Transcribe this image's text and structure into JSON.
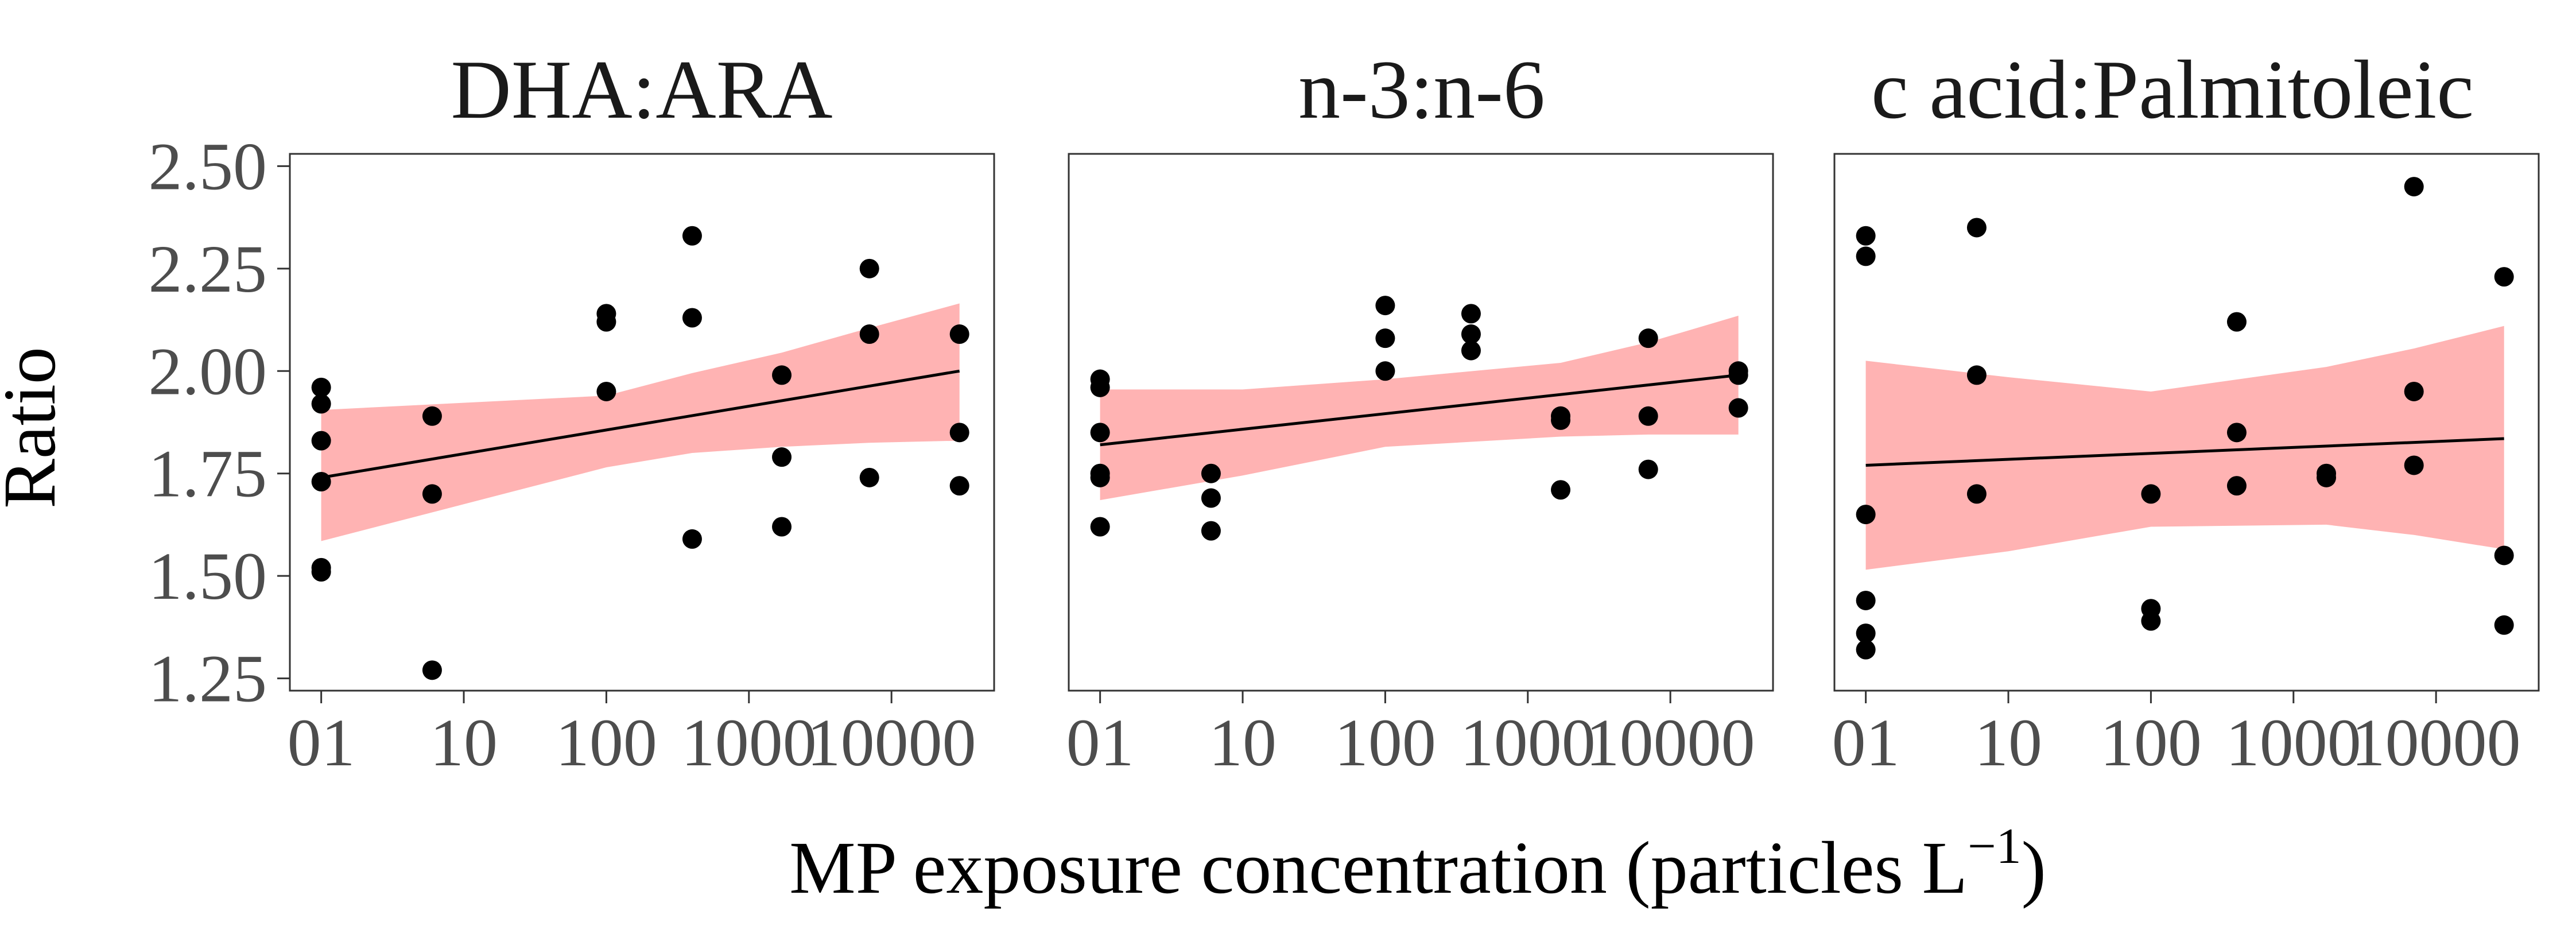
{
  "chart_data": {
    "type": "scatter",
    "xlabel": "MP exposure concentration (particles L",
    "xlabel_sup": "−1",
    "xlabel_close": ")",
    "ylabel": "Ratio",
    "x_scale": "log10",
    "x_ticks": [
      {
        "value": 1,
        "label": "01"
      },
      {
        "value": 10,
        "label": "10"
      },
      {
        "value": 100,
        "label": "100"
      },
      {
        "value": 1000,
        "label": "1000"
      },
      {
        "value": 10000,
        "label": "10000"
      }
    ],
    "y_ticks": [
      {
        "value": 1.25,
        "label": "1.25"
      },
      {
        "value": 1.5,
        "label": "1.50"
      },
      {
        "value": 1.75,
        "label": "1.75"
      },
      {
        "value": 2.0,
        "label": "2.00"
      },
      {
        "value": 2.25,
        "label": "2.25"
      },
      {
        "value": 2.5,
        "label": "2.50"
      }
    ],
    "ylim": [
      1.22,
      2.53
    ],
    "xlim_log10": [
      -0.22,
      4.72
    ],
    "grid": false,
    "colors": {
      "points": "#000000",
      "fit_line": "#000000",
      "ci_band": "#ffb3b3",
      "panel_border": "#333333"
    },
    "panels": [
      {
        "title": "DHA:ARA",
        "points": [
          {
            "x": 1,
            "y": 1.96
          },
          {
            "x": 1,
            "y": 1.92
          },
          {
            "x": 1,
            "y": 1.83
          },
          {
            "x": 1,
            "y": 1.73
          },
          {
            "x": 1,
            "y": 1.52
          },
          {
            "x": 1,
            "y": 1.51
          },
          {
            "x": 6,
            "y": 1.89
          },
          {
            "x": 6,
            "y": 1.7
          },
          {
            "x": 6,
            "y": 1.27
          },
          {
            "x": 100,
            "y": 2.14
          },
          {
            "x": 100,
            "y": 2.12
          },
          {
            "x": 100,
            "y": 1.95
          },
          {
            "x": 400,
            "y": 2.33
          },
          {
            "x": 400,
            "y": 2.13
          },
          {
            "x": 400,
            "y": 1.59
          },
          {
            "x": 1700,
            "y": 1.99
          },
          {
            "x": 1700,
            "y": 1.79
          },
          {
            "x": 1700,
            "y": 1.62
          },
          {
            "x": 7000,
            "y": 2.25
          },
          {
            "x": 7000,
            "y": 2.09
          },
          {
            "x": 7000,
            "y": 1.74
          },
          {
            "x": 30000,
            "y": 2.09
          },
          {
            "x": 30000,
            "y": 1.85
          },
          {
            "x": 30000,
            "y": 1.72
          }
        ],
        "fit": [
          {
            "x": 1,
            "y": 1.74
          },
          {
            "x": 30000,
            "y": 2.0
          }
        ],
        "ci_upper": [
          {
            "x": 1,
            "y": 1.905
          },
          {
            "x": 100,
            "y": 1.94
          },
          {
            "x": 400,
            "y": 1.995
          },
          {
            "x": 1700,
            "y": 2.045
          },
          {
            "x": 7000,
            "y": 2.105
          },
          {
            "x": 30000,
            "y": 2.165
          }
        ],
        "ci_lower": [
          {
            "x": 1,
            "y": 1.585
          },
          {
            "x": 100,
            "y": 1.765
          },
          {
            "x": 400,
            "y": 1.8
          },
          {
            "x": 1700,
            "y": 1.815
          },
          {
            "x": 7000,
            "y": 1.825
          },
          {
            "x": 30000,
            "y": 1.83
          }
        ]
      },
      {
        "title": "n-3:n-6",
        "points": [
          {
            "x": 1,
            "y": 1.98
          },
          {
            "x": 1,
            "y": 1.96
          },
          {
            "x": 1,
            "y": 1.85
          },
          {
            "x": 1,
            "y": 1.75
          },
          {
            "x": 1,
            "y": 1.74
          },
          {
            "x": 1,
            "y": 1.62
          },
          {
            "x": 6,
            "y": 1.75
          },
          {
            "x": 6,
            "y": 1.69
          },
          {
            "x": 6,
            "y": 1.61
          },
          {
            "x": 100,
            "y": 2.16
          },
          {
            "x": 100,
            "y": 2.08
          },
          {
            "x": 100,
            "y": 2.0
          },
          {
            "x": 400,
            "y": 2.14
          },
          {
            "x": 400,
            "y": 2.09
          },
          {
            "x": 400,
            "y": 2.05
          },
          {
            "x": 1700,
            "y": 1.89
          },
          {
            "x": 1700,
            "y": 1.88
          },
          {
            "x": 1700,
            "y": 1.71
          },
          {
            "x": 7000,
            "y": 2.08
          },
          {
            "x": 7000,
            "y": 1.89
          },
          {
            "x": 7000,
            "y": 1.76
          },
          {
            "x": 30000,
            "y": 2.0
          },
          {
            "x": 30000,
            "y": 1.99
          },
          {
            "x": 30000,
            "y": 1.91
          }
        ],
        "fit": [
          {
            "x": 1,
            "y": 1.82
          },
          {
            "x": 30000,
            "y": 1.99
          }
        ],
        "ci_upper": [
          {
            "x": 1,
            "y": 1.955
          },
          {
            "x": 10,
            "y": 1.955
          },
          {
            "x": 100,
            "y": 1.98
          },
          {
            "x": 1700,
            "y": 2.02
          },
          {
            "x": 7000,
            "y": 2.07
          },
          {
            "x": 30000,
            "y": 2.135
          }
        ],
        "ci_lower": [
          {
            "x": 1,
            "y": 1.685
          },
          {
            "x": 10,
            "y": 1.745
          },
          {
            "x": 100,
            "y": 1.815
          },
          {
            "x": 1700,
            "y": 1.84
          },
          {
            "x": 7000,
            "y": 1.845
          },
          {
            "x": 30000,
            "y": 1.845
          }
        ]
      },
      {
        "title": "c acid:Palmitoleic",
        "points": [
          {
            "x": 1,
            "y": 2.33
          },
          {
            "x": 1,
            "y": 2.28
          },
          {
            "x": 1,
            "y": 1.65
          },
          {
            "x": 1,
            "y": 1.44
          },
          {
            "x": 1,
            "y": 1.36
          },
          {
            "x": 1,
            "y": 1.32
          },
          {
            "x": 6,
            "y": 2.35
          },
          {
            "x": 6,
            "y": 1.99
          },
          {
            "x": 6,
            "y": 1.7
          },
          {
            "x": 100,
            "y": 1.7
          },
          {
            "x": 100,
            "y": 1.42
          },
          {
            "x": 100,
            "y": 1.39
          },
          {
            "x": 400,
            "y": 2.12
          },
          {
            "x": 400,
            "y": 1.85
          },
          {
            "x": 400,
            "y": 1.72
          },
          {
            "x": 1700,
            "y": 1.75
          },
          {
            "x": 1700,
            "y": 1.74
          },
          {
            "x": 7000,
            "y": 2.45
          },
          {
            "x": 7000,
            "y": 1.95
          },
          {
            "x": 7000,
            "y": 1.77
          },
          {
            "x": 30000,
            "y": 2.23
          },
          {
            "x": 30000,
            "y": 1.55
          },
          {
            "x": 30000,
            "y": 1.38
          }
        ],
        "fit": [
          {
            "x": 1,
            "y": 1.77
          },
          {
            "x": 30000,
            "y": 1.835
          }
        ],
        "ci_upper": [
          {
            "x": 1,
            "y": 2.025
          },
          {
            "x": 10,
            "y": 1.985
          },
          {
            "x": 100,
            "y": 1.95
          },
          {
            "x": 1700,
            "y": 2.01
          },
          {
            "x": 7000,
            "y": 2.055
          },
          {
            "x": 30000,
            "y": 2.11
          }
        ],
        "ci_lower": [
          {
            "x": 1,
            "y": 1.515
          },
          {
            "x": 10,
            "y": 1.56
          },
          {
            "x": 100,
            "y": 1.62
          },
          {
            "x": 1700,
            "y": 1.625
          },
          {
            "x": 7000,
            "y": 1.6
          },
          {
            "x": 30000,
            "y": 1.565
          }
        ]
      }
    ]
  }
}
